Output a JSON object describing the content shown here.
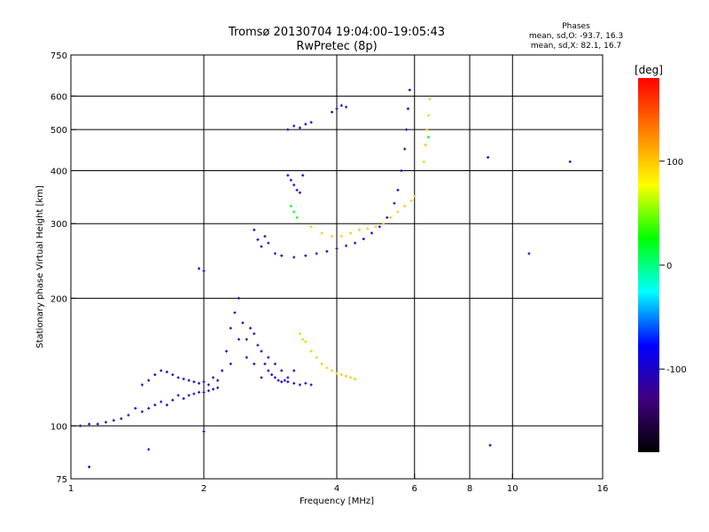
{
  "chart_data": {
    "type": "scatter",
    "title_line1": "Tromsø 20130704 19:04:00–19:05:43",
    "title_line2": "RwPretec (8p)",
    "xlabel": "Frequency [MHz]",
    "ylabel": "Stationary phase Virtual Height [km]",
    "x_scale": "log",
    "y_scale": "log",
    "xlim": [
      1,
      16
    ],
    "ylim": [
      75,
      750
    ],
    "x_ticks": [
      1,
      2,
      4,
      6,
      8,
      10,
      16
    ],
    "x_tick_labels": [
      "1",
      "2",
      "4",
      "6",
      "8",
      "10",
      "16"
    ],
    "x_grid": [
      2,
      4,
      6,
      8,
      10
    ],
    "y_ticks": [
      75,
      100,
      200,
      300,
      400,
      500,
      600,
      750
    ],
    "y_tick_labels": [
      "75",
      "100",
      "200",
      "300",
      "400",
      "500",
      "600",
      "750"
    ],
    "y_grid": [
      100,
      200,
      300,
      400,
      500,
      600
    ],
    "grid": true,
    "phases": {
      "title": "Phases",
      "line_o": "mean, sd,O: -93.7, 16.3",
      "line_x": "mean, sd,X:  82.1, 16.7"
    },
    "colorbar": {
      "label": "[deg]",
      "range": [
        -180,
        180
      ],
      "ticks": [
        100,
        0,
        -100
      ],
      "tick_labels": [
        "100",
        "0",
        "-100"
      ],
      "colors": [
        "#ff0000",
        "#ff8000",
        "#ffff00",
        "#00ff00",
        "#00ffff",
        "#0000ff",
        "#400080",
        "#000000"
      ]
    },
    "traces": [
      {
        "name_hint": "E-region trace",
        "points": [
          [
            1.05,
            100
          ],
          [
            1.1,
            101
          ],
          [
            1.15,
            101
          ],
          [
            1.2,
            102
          ],
          [
            1.25,
            103
          ],
          [
            1.3,
            104
          ],
          [
            1.35,
            106
          ],
          [
            1.4,
            110
          ],
          [
            1.45,
            108
          ],
          [
            1.5,
            110
          ],
          [
            1.55,
            112
          ],
          [
            1.6,
            114
          ],
          [
            1.65,
            112
          ],
          [
            1.7,
            115
          ],
          [
            1.75,
            118
          ],
          [
            1.8,
            116
          ],
          [
            1.85,
            118
          ],
          [
            1.9,
            119
          ],
          [
            1.95,
            120
          ],
          [
            2.0,
            120
          ],
          [
            2.05,
            121
          ],
          [
            2.1,
            122
          ],
          [
            2.15,
            123
          ]
        ],
        "phase": -105
      },
      {
        "name_hint": "E-region spread",
        "points": [
          [
            1.45,
            125
          ],
          [
            1.5,
            128
          ],
          [
            1.55,
            132
          ],
          [
            1.6,
            135
          ],
          [
            1.65,
            134
          ],
          [
            1.7,
            132
          ],
          [
            1.75,
            130
          ],
          [
            1.8,
            129
          ],
          [
            1.85,
            128
          ],
          [
            1.9,
            127
          ],
          [
            1.95,
            126
          ],
          [
            2.0,
            127
          ],
          [
            2.05,
            125
          ],
          [
            2.1,
            130
          ],
          [
            2.15,
            128
          ]
        ],
        "phase": -110
      },
      {
        "name_hint": "Es spread cloud",
        "points": [
          [
            2.2,
            135
          ],
          [
            2.25,
            150
          ],
          [
            2.3,
            170
          ],
          [
            2.35,
            185
          ],
          [
            2.4,
            200
          ],
          [
            2.45,
            175
          ],
          [
            2.5,
            160
          ],
          [
            2.55,
            170
          ],
          [
            2.6,
            165
          ],
          [
            2.65,
            155
          ],
          [
            2.7,
            150
          ],
          [
            2.75,
            140
          ],
          [
            2.8,
            135
          ],
          [
            2.85,
            132
          ],
          [
            2.9,
            130
          ],
          [
            2.95,
            128
          ],
          [
            3.0,
            127
          ],
          [
            3.05,
            128
          ],
          [
            3.1,
            127
          ],
          [
            3.2,
            126
          ],
          [
            3.3,
            125
          ],
          [
            3.4,
            126
          ],
          [
            3.5,
            125
          ],
          [
            2.3,
            140
          ],
          [
            2.4,
            160
          ],
          [
            2.5,
            145
          ],
          [
            2.6,
            140
          ],
          [
            2.7,
            130
          ],
          [
            2.8,
            145
          ],
          [
            2.9,
            140
          ],
          [
            3.0,
            135
          ],
          [
            3.1,
            130
          ],
          [
            3.2,
            135
          ]
        ],
        "phase": -100
      },
      {
        "name_hint": "Es yellow",
        "points": [
          [
            3.3,
            165
          ],
          [
            3.35,
            160
          ],
          [
            3.4,
            158
          ],
          [
            3.5,
            150
          ],
          [
            3.6,
            145
          ],
          [
            3.7,
            140
          ],
          [
            3.8,
            137
          ],
          [
            3.9,
            135
          ],
          [
            4.0,
            133
          ],
          [
            4.1,
            132
          ],
          [
            4.2,
            131
          ],
          [
            4.3,
            130
          ],
          [
            4.4,
            129
          ]
        ],
        "phase": 100
      },
      {
        "name_hint": "F o-trace",
        "points": [
          [
            2.9,
            255
          ],
          [
            3.0,
            252
          ],
          [
            3.2,
            250
          ],
          [
            3.4,
            252
          ],
          [
            3.6,
            255
          ],
          [
            3.8,
            258
          ],
          [
            4.0,
            262
          ],
          [
            4.2,
            266
          ],
          [
            4.4,
            270
          ],
          [
            4.6,
            276
          ],
          [
            4.8,
            285
          ],
          [
            5.0,
            295
          ],
          [
            5.2,
            310
          ],
          [
            5.4,
            335
          ],
          [
            5.5,
            360
          ],
          [
            5.6,
            400
          ],
          [
            5.7,
            450
          ],
          [
            5.75,
            500
          ],
          [
            5.8,
            560
          ],
          [
            5.85,
            620
          ]
        ],
        "phase": -100
      },
      {
        "name_hint": "F x-trace",
        "points": [
          [
            3.5,
            295
          ],
          [
            3.7,
            285
          ],
          [
            3.9,
            280
          ],
          [
            4.1,
            280
          ],
          [
            4.3,
            285
          ],
          [
            4.5,
            290
          ],
          [
            4.7,
            292
          ],
          [
            4.9,
            295
          ],
          [
            5.1,
            300
          ],
          [
            5.3,
            310
          ],
          [
            5.5,
            320
          ],
          [
            5.7,
            330
          ],
          [
            5.9,
            340
          ],
          [
            6.0,
            348
          ]
        ],
        "phase": 100
      },
      {
        "name_hint": "F spread low",
        "points": [
          [
            2.6,
            290
          ],
          [
            2.65,
            275
          ],
          [
            2.7,
            265
          ],
          [
            2.75,
            280
          ],
          [
            2.8,
            270
          ]
        ],
        "phase": -90
      },
      {
        "name_hint": "F spread mid",
        "points": [
          [
            3.1,
            390
          ],
          [
            3.15,
            380
          ],
          [
            3.2,
            370
          ],
          [
            3.25,
            360
          ],
          [
            3.3,
            355
          ],
          [
            3.35,
            390
          ]
        ],
        "phase": -100
      },
      {
        "name_hint": "F spread high",
        "points": [
          [
            3.1,
            500
          ],
          [
            3.2,
            510
          ],
          [
            3.3,
            505
          ],
          [
            3.4,
            515
          ],
          [
            3.5,
            520
          ]
        ],
        "phase": -100
      },
      {
        "name_hint": "F spread top",
        "points": [
          [
            3.9,
            550
          ],
          [
            4.0,
            560
          ],
          [
            4.1,
            570
          ],
          [
            4.2,
            565
          ]
        ],
        "phase": -110
      },
      {
        "name_hint": "x high trace",
        "points": [
          [
            6.3,
            420
          ],
          [
            6.35,
            460
          ],
          [
            6.4,
            500
          ],
          [
            6.45,
            540
          ],
          [
            6.5,
            590
          ]
        ],
        "phase": 100
      },
      {
        "name_hint": "green spread",
        "points": [
          [
            3.15,
            330
          ],
          [
            3.2,
            320
          ],
          [
            3.25,
            310
          ],
          [
            6.45,
            480
          ]
        ],
        "phase": 20
      },
      {
        "name_hint": "isolated",
        "points": [
          [
            1.95,
            235
          ],
          [
            2.0,
            232
          ],
          [
            8.9,
            90
          ],
          [
            8.8,
            430
          ],
          [
            10.9,
            255
          ],
          [
            13.5,
            420
          ],
          [
            1.1,
            80
          ],
          [
            1.5,
            88
          ],
          [
            2.0,
            97
          ]
        ],
        "phase": -100
      }
    ]
  }
}
